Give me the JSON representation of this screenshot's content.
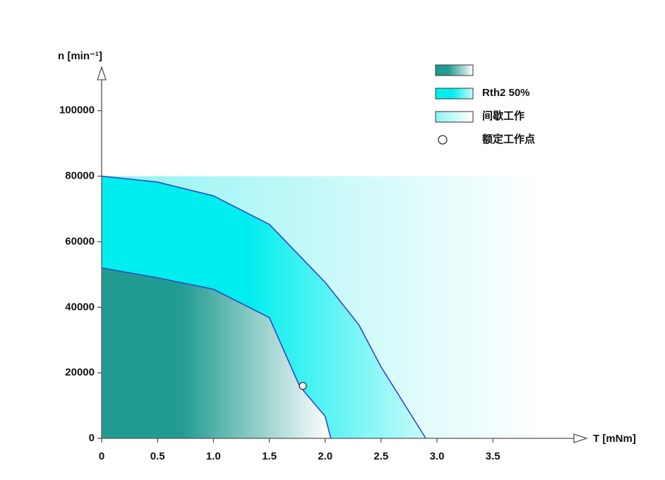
{
  "chart_data": {
    "type": "area",
    "x_label": "T [mNm]",
    "y_label": "n [min⁻¹]",
    "xlim": [
      0,
      4.2
    ],
    "ylim": [
      0,
      112000
    ],
    "xticks": [
      0,
      0.5,
      {
        "value": 1,
        "label": "1.0"
      },
      1.5,
      {
        "value": 2,
        "label": "2.0"
      },
      2.5,
      {
        "value": 3,
        "label": "3.0"
      },
      3.5
    ],
    "yticks": [
      0,
      20000,
      40000,
      60000,
      80000,
      100000
    ],
    "series": [
      {
        "name": "间歇工作",
        "color": "#8ff3f3",
        "x": [
          0,
          3.95
        ],
        "values": [
          80000,
          80000
        ]
      },
      {
        "name": "Rth2 50%",
        "color": "#00eeee",
        "line_color": "#3347c8",
        "x": [
          0,
          0.5,
          1.0,
          1.5,
          2.0,
          2.3,
          2.5,
          2.9
        ],
        "values": [
          80000,
          78200,
          74000,
          65300,
          47600,
          34700,
          21800,
          0
        ]
      },
      {
        "color": "#229c92",
        "line_color": "#3347c8",
        "x": [
          0,
          0.5,
          1.0,
          1.5,
          1.77,
          2.0,
          2.05
        ],
        "values": [
          52000,
          49000,
          45500,
          36850,
          16000,
          6700,
          0
        ]
      },
      {
        "name": "额定工作点",
        "type": "scatter",
        "color": "#ffffff",
        "x": [
          1.8
        ],
        "values": [
          16000
        ]
      }
    ]
  }
}
